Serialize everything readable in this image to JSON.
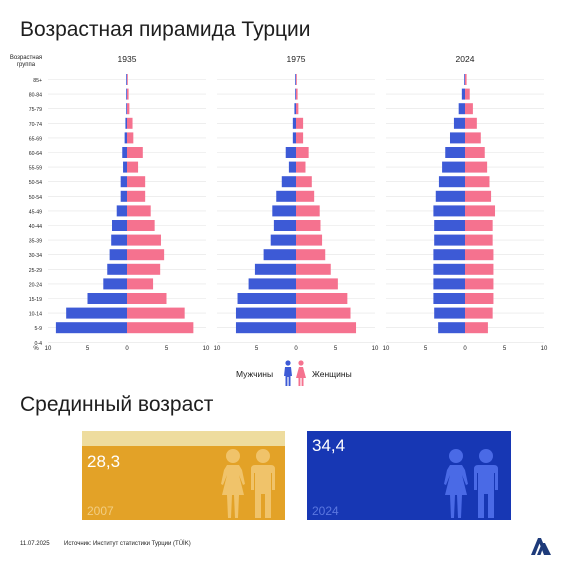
{
  "title": "Возрастная пирамида Турции",
  "axis": {
    "age_group_label": "Возрастная группа",
    "percent_label": "%",
    "tick_labels": [
      "10",
      "5",
      "0",
      "5",
      "10"
    ]
  },
  "legend": {
    "men": "Мужчины",
    "women": "Женщины"
  },
  "colors": {
    "men": "#3d5ad6",
    "women": "#f5728f",
    "orange": "#e3a227",
    "orange_band": "#eedc9e",
    "blue": "#1737b4",
    "figure_orange": "#f0c36a",
    "figure_blue": "#4a6ae6"
  },
  "chart_data": {
    "type": "bar",
    "orientation": "horizontal",
    "subtype": "population-pyramid",
    "xlim": [
      -10,
      10
    ],
    "x_ticks": [
      -10,
      -5,
      0,
      5,
      10
    ],
    "categories": [
      "85+",
      "80-84",
      "75-79",
      "70-74",
      "65-69",
      "60-64",
      "55-59",
      "50-54",
      "50-54",
      "45-49",
      "40-44",
      "35-39",
      "30-34",
      "25-29",
      "20-24",
      "15-19",
      "10-14",
      "5-9",
      "0-4"
    ],
    "panels": [
      {
        "title": "1935",
        "men": [
          0.1,
          0.1,
          0.1,
          0.2,
          0.3,
          0.6,
          0.5,
          0.8,
          0.8,
          1.3,
          1.9,
          2.0,
          2.2,
          2.5,
          3.0,
          5.0,
          7.7,
          9.0,
          0
        ],
        "women": [
          0.1,
          0.2,
          0.3,
          0.7,
          0.8,
          2.0,
          1.4,
          2.3,
          2.3,
          3.0,
          3.5,
          4.3,
          4.7,
          4.2,
          3.3,
          5.0,
          7.3,
          8.4,
          0
        ]
      },
      {
        "title": "1975",
        "men": [
          0.1,
          0.1,
          0.2,
          0.4,
          0.4,
          1.3,
          0.9,
          1.8,
          2.5,
          3.0,
          2.8,
          3.2,
          4.1,
          5.2,
          6.0,
          7.4,
          7.6,
          7.6,
          0
        ],
        "women": [
          0.1,
          0.2,
          0.3,
          0.9,
          0.9,
          1.6,
          1.2,
          2.0,
          2.3,
          3.0,
          3.1,
          3.3,
          3.7,
          4.4,
          5.3,
          6.5,
          6.9,
          7.6,
          0
        ]
      },
      {
        "title": "2024",
        "men": [
          0.1,
          0.4,
          0.8,
          1.4,
          1.9,
          2.5,
          2.9,
          3.3,
          3.7,
          4.0,
          3.9,
          3.9,
          4.0,
          4.0,
          4.0,
          4.0,
          3.9,
          3.4,
          0
        ],
        "women": [
          0.2,
          0.6,
          1.0,
          1.5,
          2.0,
          2.5,
          2.8,
          3.1,
          3.3,
          3.8,
          3.5,
          3.5,
          3.6,
          3.6,
          3.6,
          3.6,
          3.5,
          2.9,
          0
        ]
      }
    ]
  },
  "median_age": {
    "title": "Срединный возраст",
    "cards": [
      {
        "value": "28,3",
        "year": "2007"
      },
      {
        "value": "34,4",
        "year": "2024"
      }
    ]
  },
  "footer": {
    "date": "11.07.2025",
    "source": "Источник: Институт статистики Турции (TÜİK)",
    "logo_text": "AA"
  }
}
